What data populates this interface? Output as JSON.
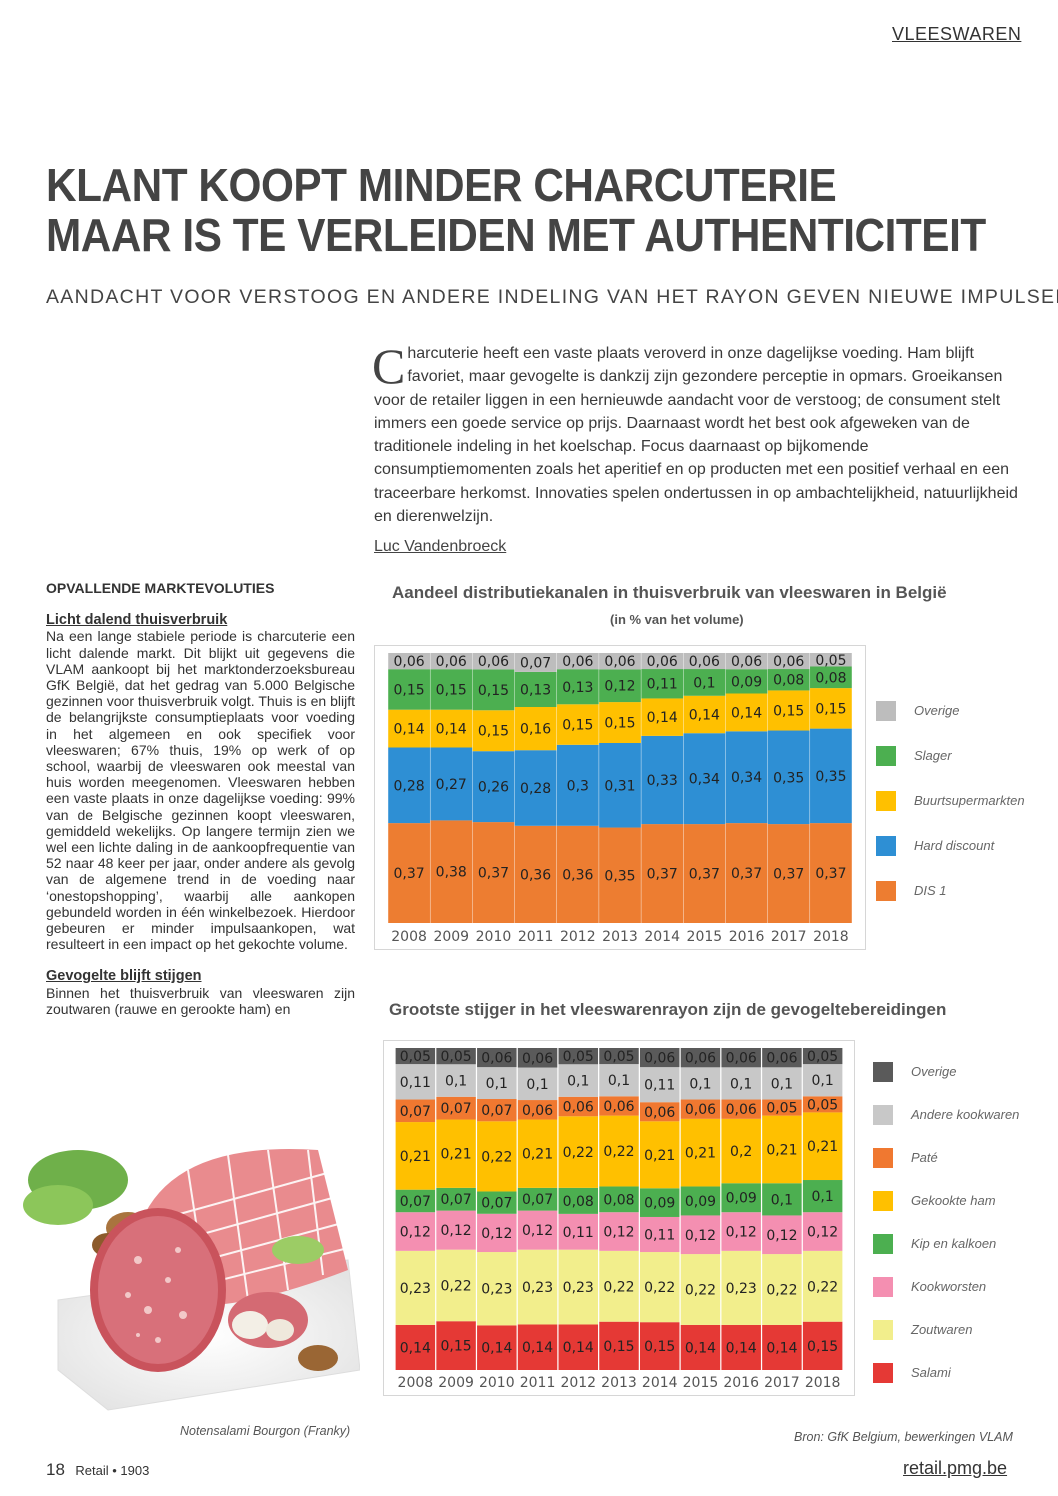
{
  "section_tag": "VLEESWAREN",
  "title_line1": "KLANT KOOPT MINDER CHARCUTERIE",
  "title_line2": "MAAR IS TE VERLEIDEN MET AUTHENTICITEIT",
  "subtitle": "AANDACHT VOOR VERSTOOG EN ANDERE INDELING VAN HET RAYON GEVEN NIEUWE IMPULSEN",
  "intro": {
    "dropcap": "C",
    "text": "harcuterie heeft een vaste plaats veroverd in onze dagelijkse voeding. Ham blijft favoriet, maar gevogelte is dankzij zijn gezondere perceptie in opmars. Groeikansen voor de retailer liggen in een hernieuwde aandacht voor de verstoog; de consument stelt immers een goede service op prijs. Daarnaast wordt het best ook afgeweken van de traditionele indeling in het koelschap. Focus daarnaast op bijkomende consumptiemomenten zoals het aperitief en op producten met een positief verhaal en een traceerbare herkomst. Innovaties spelen ondertussen in op ambachtelijkheid, natuurlijkheid en dierenwelzijn."
  },
  "author": "Luc Vandenbroeck",
  "left_column": {
    "heading": "OPVALLENDE MARKTEVOLUTIES",
    "sub1": "Licht dalend thuisverbruik",
    "para1": "Na een lange stabiele periode is charcuterie een licht dalende markt. Dit blijkt uit gegevens die VLAM aankoopt bij het marktonderzoeksbureau GfK België, dat het gedrag van 5.000 Belgische gezinnen voor thuisverbruik volgt. Thuis is en blijft de belangrijkste consumptieplaats voor voeding in het algemeen en ook specifiek voor vleeswaren; 67% thuis, 19% op werk of op school, waarbij de vleeswaren ook meestal van huis worden meegenomen. Vleeswaren hebben een vaste plaats in onze dagelijkse voeding: 99% van de Belgische gezinnen koopt vleeswaren, gemiddeld wekelijks. Op langere termijn zien we wel een lichte daling in de aankoopfrequentie van 52 naar 48 keer per jaar, onder andere als gevolg van de algemene trend in de voeding naar ‘onestopshopping’, waarbij alle aankopen gebundeld worden in één winkelbezoek. Hierdoor gebeuren er minder impulsaankopen, wat resulteert in een impact op het gekochte volume.",
    "sub2": "Gevogelte blijft stijgen",
    "para2": "Binnen het thuisverbruik van vleeswaren zijn zoutwaren (rauwe en gerookte ham) en"
  },
  "photo_caption": "Notensalami Bourgon (Franky)",
  "source": "Bron: GfK Belgium, bewerkingen VLAM",
  "footer": {
    "page": "18",
    "magazine": "Retail • 1903",
    "url": "retail.pmg.be"
  },
  "chart_data": [
    {
      "type": "bar",
      "stacked": true,
      "title": "Aandeel distributiekanalen in thuisverbruik van vleeswaren in België",
      "subtitle": "(in % van het volume)",
      "categories": [
        "2008",
        "2009",
        "2010",
        "2011",
        "2012",
        "2013",
        "2014",
        "2015",
        "2016",
        "2017",
        "2018"
      ],
      "legend_position": "right",
      "series": [
        {
          "name": "DIS 1",
          "color": "#ED7D31",
          "values": [
            0.37,
            0.38,
            0.37,
            0.36,
            0.36,
            0.35,
            0.37,
            0.37,
            0.37,
            0.37,
            0.37
          ]
        },
        {
          "name": "Hard discount",
          "color": "#2E8FD4",
          "values": [
            0.28,
            0.27,
            0.26,
            0.28,
            0.3,
            0.31,
            0.33,
            0.34,
            0.34,
            0.35,
            0.35
          ]
        },
        {
          "name": "Buurtsupermarkten",
          "color": "#FFC000",
          "values": [
            0.14,
            0.14,
            0.15,
            0.16,
            0.15,
            0.15,
            0.14,
            0.14,
            0.14,
            0.15,
            0.15
          ]
        },
        {
          "name": "Slager",
          "color": "#4CAF50",
          "values": [
            0.15,
            0.15,
            0.15,
            0.13,
            0.13,
            0.12,
            0.11,
            0.1,
            0.09,
            0.08,
            0.08
          ]
        },
        {
          "name": "Overige",
          "color": "#BDBDBD",
          "values": [
            0.06,
            0.06,
            0.06,
            0.07,
            0.06,
            0.06,
            0.06,
            0.06,
            0.06,
            0.06,
            0.05
          ]
        }
      ],
      "value_labels": {
        "DIS 1": [
          "0,37",
          "0,38",
          "0,37",
          "0,36",
          "0,36",
          "0,35",
          "0,37",
          "0,37",
          "0,37",
          "0,37",
          "0,37"
        ],
        "Hard discount": [
          "0,28",
          "0,27",
          "0,26",
          "0,28",
          "0,3",
          "0,31",
          "0,33",
          "0,34",
          "0,34",
          "0,35",
          "0,35"
        ],
        "Buurtsupermarkten": [
          "0,14",
          "0,14",
          "0,15",
          "0,16",
          "0,15",
          "0,15",
          "0,14",
          "0,14",
          "0,14",
          "0,15",
          "0,15"
        ],
        "Slager": [
          "0,15",
          "0,15",
          "0,15",
          "0,13",
          "0,13",
          "0,12",
          "0,11",
          "0,1",
          "0,09",
          "0,08",
          "0,08"
        ],
        "Overige": [
          "0,06",
          "0,06",
          "0,06",
          "0,07",
          "0,06",
          "0,06",
          "0,06",
          "0,06",
          "0,06",
          "0,06",
          "0,05"
        ]
      }
    },
    {
      "type": "bar",
      "stacked": true,
      "title": "Grootste stijger in het vleeswarenrayon zijn de gevogeltebereidingen",
      "categories": [
        "2008",
        "2009",
        "2010",
        "2011",
        "2012",
        "2013",
        "2014",
        "2015",
        "2016",
        "2017",
        "2018"
      ],
      "legend_position": "right",
      "series": [
        {
          "name": "Salami",
          "color": "#E53935",
          "values": [
            0.14,
            0.15,
            0.14,
            0.14,
            0.14,
            0.15,
            0.15,
            0.14,
            0.14,
            0.14,
            0.15
          ]
        },
        {
          "name": "Zoutwaren",
          "color": "#F2EE8C",
          "values": [
            0.23,
            0.22,
            0.23,
            0.23,
            0.23,
            0.22,
            0.22,
            0.22,
            0.23,
            0.22,
            0.22
          ]
        },
        {
          "name": "Kookworsten",
          "color": "#F48FB1",
          "values": [
            0.12,
            0.12,
            0.12,
            0.12,
            0.11,
            0.12,
            0.11,
            0.12,
            0.12,
            0.12,
            0.12
          ]
        },
        {
          "name": "Kip en kalkoen",
          "color": "#4CAF50",
          "values": [
            0.07,
            0.07,
            0.07,
            0.07,
            0.08,
            0.08,
            0.09,
            0.09,
            0.09,
            0.1,
            0.1
          ]
        },
        {
          "name": "Gekookte ham",
          "color": "#FFC000",
          "values": [
            0.21,
            0.21,
            0.22,
            0.21,
            0.22,
            0.22,
            0.21,
            0.21,
            0.2,
            0.21,
            0.21
          ]
        },
        {
          "name": "Paté",
          "color": "#F07830",
          "values": [
            0.07,
            0.07,
            0.07,
            0.06,
            0.06,
            0.06,
            0.06,
            0.06,
            0.06,
            0.05,
            0.05
          ]
        },
        {
          "name": "Andere kookwaren",
          "color": "#C8C8C8",
          "values": [
            0.11,
            0.1,
            0.1,
            0.1,
            0.1,
            0.1,
            0.11,
            0.1,
            0.1,
            0.1,
            0.1
          ]
        },
        {
          "name": "Overige",
          "color": "#5A5A5A",
          "values": [
            0.05,
            0.05,
            0.06,
            0.06,
            0.05,
            0.05,
            0.06,
            0.06,
            0.06,
            0.06,
            0.05
          ]
        }
      ],
      "value_labels": {
        "Salami": [
          "0,14",
          "0,15",
          "0,14",
          "0,14",
          "0,14",
          "0,15",
          "0,15",
          "0,14",
          "0,14",
          "0,14",
          "0,15"
        ],
        "Zoutwaren": [
          "0,23",
          "0,22",
          "0,23",
          "0,23",
          "0,23",
          "0,22",
          "0,22",
          "0,22",
          "0,23",
          "0,22",
          "0,22"
        ],
        "Kookworsten": [
          "0,12",
          "0,12",
          "0,12",
          "0,12",
          "0,11",
          "0,12",
          "0,11",
          "0,12",
          "0,12",
          "0,12",
          "0,12"
        ],
        "Kip en kalkoen": [
          "0,07",
          "0,07",
          "0,07",
          "0,07",
          "0,08",
          "0,08",
          "0,09",
          "0,09",
          "0,09",
          "0,1",
          "0,1"
        ],
        "Gekookte ham": [
          "0,21",
          "0,21",
          "0,22",
          "0,21",
          "0,22",
          "0,22",
          "0,21",
          "0,21",
          "0,2",
          "0,21",
          "0,21"
        ],
        "Paté": [
          "0,07",
          "0,07",
          "0,07",
          "0,06",
          "0,06",
          "0,06",
          "0,06",
          "0,06",
          "0,06",
          "0,05",
          "0,05"
        ],
        "Andere kookwaren": [
          "0,11",
          "0,1",
          "0,1",
          "0,1",
          "0,1",
          "0,1",
          "0,11",
          "0,1",
          "0,1",
          "0,1",
          "0,1"
        ],
        "Overige": [
          "0,05",
          "0,05",
          "0,06",
          "0,06",
          "0,05",
          "0,05",
          "0,06",
          "0,06",
          "0,06",
          "0,06",
          "0,05"
        ]
      }
    }
  ]
}
